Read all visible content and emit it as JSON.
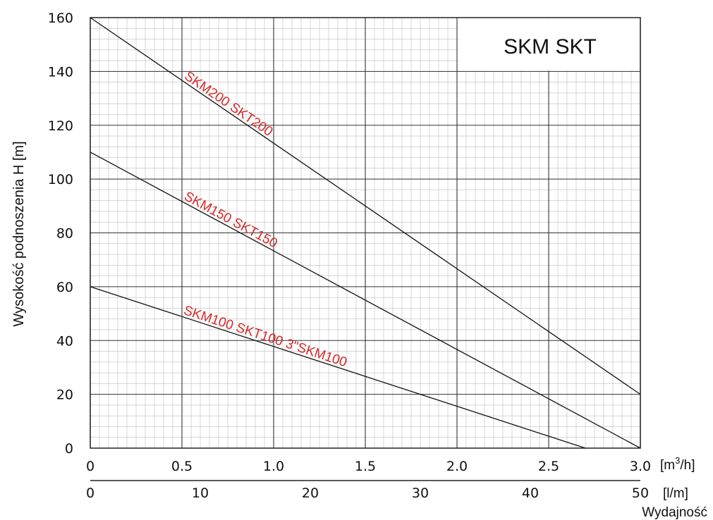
{
  "chart_data": {
    "type": "line",
    "title": "SKM SKT",
    "ylabel": "Wysokość podnoszenia H [m]",
    "xlabel": "Wydajność",
    "x_unit_primary": "[m3/h]",
    "x_unit_primary_base": "[m",
    "x_unit_primary_sup": "3",
    "x_unit_primary_tail": "/h]",
    "x_unit_secondary": "[l/m]",
    "xlim": [
      0,
      3.0
    ],
    "ylim": [
      0,
      160
    ],
    "x_ticks": [
      "0",
      "0.5",
      "1.0",
      "1.5",
      "2.0",
      "2.5",
      "3.0"
    ],
    "x_ticks_secondary": [
      "0",
      "10",
      "20",
      "30",
      "40",
      "50"
    ],
    "y_ticks": [
      "0",
      "20",
      "40",
      "60",
      "80",
      "100",
      "120",
      "140",
      "160"
    ],
    "grid": true,
    "series": [
      {
        "name": "SKM200 SKT200",
        "x": [
          0,
          3.0
        ],
        "y": [
          160,
          20
        ]
      },
      {
        "name": "SKM150 SKT150",
        "x": [
          0,
          3.0
        ],
        "y": [
          110,
          0
        ]
      },
      {
        "name": "SKM100 SKT100   3\"SKM100",
        "x": [
          0,
          2.7
        ],
        "y": [
          60,
          0
        ]
      }
    ],
    "label_color": "#d42a2a"
  }
}
